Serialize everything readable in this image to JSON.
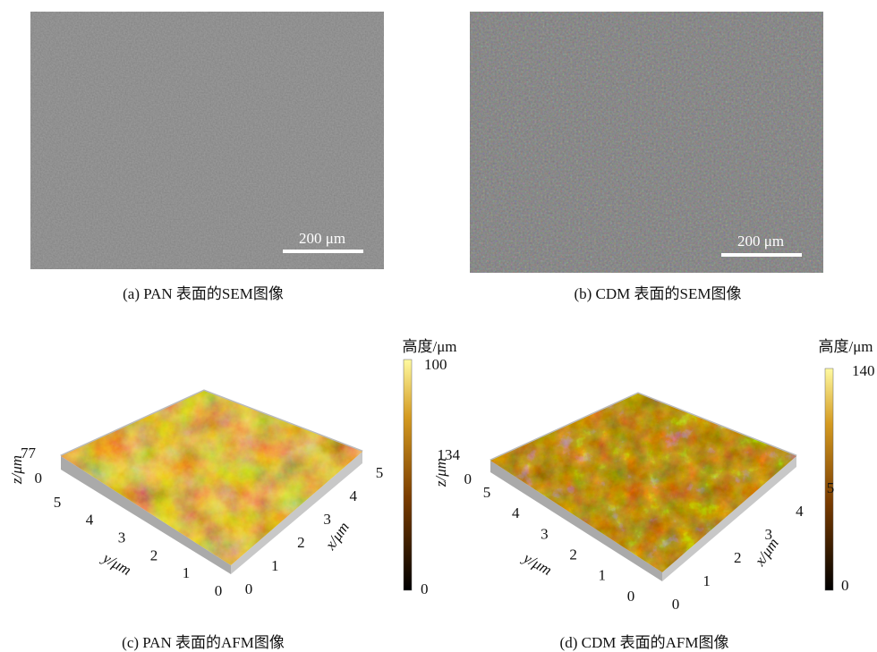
{
  "panels": [
    {
      "caption": "(a) PAN 表面的SEM图像",
      "scale_bar": "200 μm"
    },
    {
      "caption": "(b) CDM 表面的SEM图像",
      "scale_bar": "200 μm"
    },
    {
      "caption": "(c) PAN 表面的AFM图像",
      "colorbar": {
        "label": "高度/μm",
        "max": 100,
        "min": 0
      },
      "z_axis": {
        "label": "z/μm",
        "ticks": [
          0,
          77
        ]
      },
      "y_axis": {
        "label": "y/μm",
        "ticks": [
          0,
          1,
          2,
          3,
          4,
          5
        ]
      },
      "x_axis": {
        "label": "x/μm",
        "ticks": [
          0,
          1,
          2,
          3,
          4,
          5
        ]
      }
    },
    {
      "caption": "(d) CDM 表面的AFM图像",
      "colorbar": {
        "label": "高度/μm",
        "max": 140,
        "min": 0
      },
      "z_axis": {
        "label": "z/μm",
        "ticks": [
          0,
          134
        ]
      },
      "y_axis": {
        "label": "y/μm",
        "ticks": [
          0,
          1,
          2,
          3,
          4,
          5
        ]
      },
      "x_axis": {
        "label": "x/μm",
        "ticks": [
          0,
          1,
          2,
          3,
          4,
          5
        ]
      }
    }
  ]
}
